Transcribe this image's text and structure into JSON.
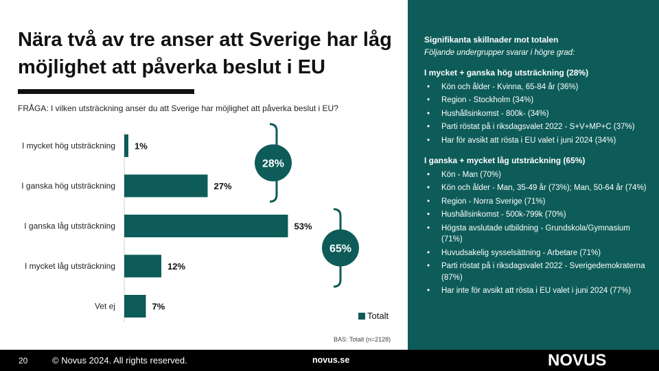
{
  "slide": {
    "title": "Nära två av tre anser att Sverige har låg möjlighet att påverka beslut i EU",
    "question": "FRÅGA: I vilken utsträckning anser du att Sverige har möjlighet att påverka beslut i EU?",
    "legend": "Totalt",
    "base": "BAS: Totalt (n=2128)",
    "bracket_high": "28%",
    "bracket_low": "65%"
  },
  "colors": {
    "accent": "#0d5c59",
    "footer": "#000000"
  },
  "chart_data": {
    "type": "bar",
    "orientation": "horizontal",
    "categories": [
      "I mycket hög utsträckning",
      "I ganska hög utsträckning",
      "I ganska låg utsträckning",
      "I mycket låg utsträckning",
      "Vet ej"
    ],
    "series": [
      {
        "name": "Totalt",
        "values": [
          1,
          27,
          53,
          12,
          7
        ]
      }
    ],
    "data_labels": [
      "1%",
      "27%",
      "53%",
      "12%",
      "7%"
    ],
    "xlim": [
      0,
      100
    ],
    "grid": false,
    "legend_position": "bottom-right"
  },
  "panel": {
    "heading": "Signifikanta skillnader mot totalen",
    "subheading": "Följande undergrupper svarar i högre grad:",
    "groups": [
      {
        "title": "I mycket + ganska hög utsträckning (28%)",
        "items": [
          "Kön och ålder - Kvinna, 65-84 år (36%)",
          "Region - Stockholm (34%)",
          "Hushållsinkomst - 800k- (34%)",
          "Parti röstat på i riksdagsvalet 2022 - S+V+MP+C (37%)",
          "Har för avsikt att rösta i EU valet i juni 2024 (34%)"
        ]
      },
      {
        "title": "I ganska + mycket låg utsträckning (65%)",
        "items": [
          "Kön - Man (70%)",
          "Kön och ålder - Man, 35-49 år (73%); Man, 50-64 år (74%)",
          "Region - Norra Sverige (71%)",
          "Hushållsinkomst - 500k-799k (70%)",
          "Högsta avslutade utbildning - Grundskola/Gymnasium (71%)",
          "Huvudsakelig sysselsättning - Arbetare (71%)",
          "Parti röstat på i riksdagsvalet 2022 - Sverigedemokraterna (87%)",
          "Har inte för avsikt att rösta i EU valet i juni 2024 (77%)"
        ]
      }
    ]
  },
  "footer": {
    "page_number": "20",
    "copyright": "© Novus 2024. All rights reserved.",
    "site": "novus.se",
    "logo": "NOVUS"
  }
}
